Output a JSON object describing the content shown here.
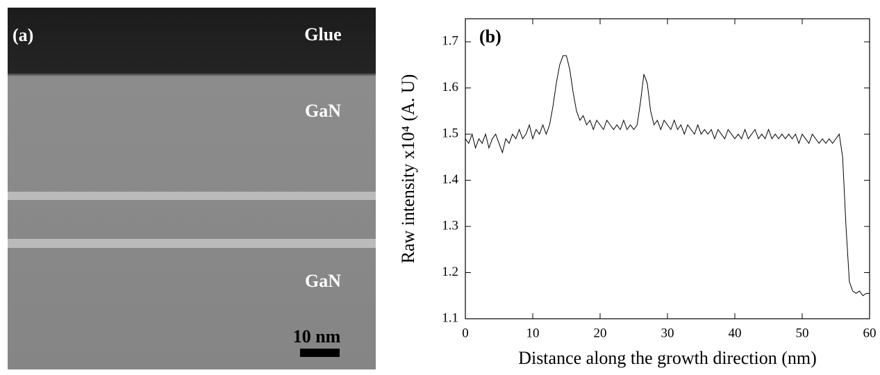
{
  "panel_a": {
    "label": "(a)",
    "labels": [
      "Glue",
      "GaN",
      "GaN"
    ],
    "scale_bar": "10 nm"
  },
  "chart_data": {
    "type": "line",
    "panel_label": "(b)",
    "xlabel": "Distance along the growth direction (nm)",
    "ylabel": "Raw intensity x10⁴ (A. U)",
    "xlim": [
      0,
      60
    ],
    "ylim": [
      1.1,
      1.75
    ],
    "xticks": [
      0,
      10,
      20,
      30,
      40,
      50,
      60
    ],
    "yticks": [
      1.1,
      1.2,
      1.3,
      1.4,
      1.5,
      1.6,
      1.7
    ],
    "series": [
      {
        "color": "#000000",
        "x": [
          0,
          0.5,
          1,
          1.5,
          2,
          2.5,
          3,
          3.5,
          4,
          4.5,
          5,
          5.5,
          6,
          6.5,
          7,
          7.5,
          8,
          8.5,
          9,
          9.5,
          10,
          10.5,
          11,
          11.5,
          12,
          12.5,
          13,
          13.5,
          14,
          14.5,
          15,
          15.5,
          16,
          16.5,
          17,
          17.5,
          18,
          18.5,
          19,
          19.5,
          20,
          20.5,
          21,
          21.5,
          22,
          22.5,
          23,
          23.5,
          24,
          24.5,
          25,
          25.5,
          26,
          26.5,
          27,
          27.5,
          28,
          28.5,
          29,
          29.5,
          30,
          30.5,
          31,
          31.5,
          32,
          32.5,
          33,
          33.5,
          34,
          34.5,
          35,
          35.5,
          36,
          36.5,
          37,
          37.5,
          38,
          38.5,
          39,
          39.5,
          40,
          40.5,
          41,
          41.5,
          42,
          42.5,
          43,
          43.5,
          44,
          44.5,
          45,
          45.5,
          46,
          46.5,
          47,
          47.5,
          48,
          48.5,
          49,
          49.5,
          50,
          50.5,
          51,
          51.5,
          52,
          52.5,
          53,
          53.5,
          54,
          54.5,
          55,
          55.5,
          56,
          56.5,
          57,
          57.5,
          58,
          58.5,
          59,
          59.5,
          60
        ],
        "values": [
          1.49,
          1.48,
          1.5,
          1.47,
          1.49,
          1.48,
          1.5,
          1.47,
          1.49,
          1.5,
          1.48,
          1.46,
          1.49,
          1.48,
          1.5,
          1.49,
          1.51,
          1.49,
          1.5,
          1.52,
          1.49,
          1.51,
          1.5,
          1.52,
          1.5,
          1.52,
          1.56,
          1.61,
          1.65,
          1.67,
          1.67,
          1.64,
          1.59,
          1.55,
          1.53,
          1.54,
          1.52,
          1.53,
          1.51,
          1.53,
          1.52,
          1.51,
          1.53,
          1.52,
          1.51,
          1.52,
          1.51,
          1.53,
          1.51,
          1.52,
          1.51,
          1.52,
          1.57,
          1.63,
          1.61,
          1.55,
          1.52,
          1.53,
          1.51,
          1.53,
          1.52,
          1.51,
          1.53,
          1.51,
          1.52,
          1.5,
          1.52,
          1.51,
          1.5,
          1.52,
          1.5,
          1.51,
          1.5,
          1.51,
          1.49,
          1.51,
          1.5,
          1.49,
          1.51,
          1.5,
          1.49,
          1.5,
          1.49,
          1.51,
          1.49,
          1.5,
          1.51,
          1.49,
          1.5,
          1.49,
          1.51,
          1.49,
          1.5,
          1.49,
          1.5,
          1.49,
          1.5,
          1.49,
          1.5,
          1.48,
          1.5,
          1.49,
          1.48,
          1.5,
          1.49,
          1.48,
          1.49,
          1.48,
          1.49,
          1.48,
          1.49,
          1.5,
          1.45,
          1.3,
          1.18,
          1.16,
          1.155,
          1.16,
          1.15,
          1.155,
          1.155
        ]
      }
    ]
  }
}
